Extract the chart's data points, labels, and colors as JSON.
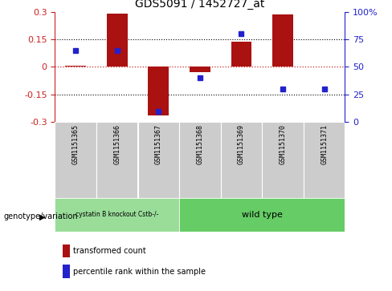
{
  "title": "GDS5091 / 1452727_at",
  "samples": [
    "GSM1151365",
    "GSM1151366",
    "GSM1151367",
    "GSM1151368",
    "GSM1151369",
    "GSM1151370",
    "GSM1151371"
  ],
  "bar_values": [
    0.005,
    0.29,
    -0.265,
    -0.03,
    0.135,
    0.285,
    0.0
  ],
  "percentile_values": [
    65,
    65,
    10,
    40,
    80,
    30,
    30
  ],
  "ylim_left": [
    -0.3,
    0.3
  ],
  "ylim_right": [
    0,
    100
  ],
  "yticks_left": [
    -0.3,
    -0.15,
    0.0,
    0.15,
    0.3
  ],
  "yticks_right": [
    0,
    25,
    50,
    75,
    100
  ],
  "bar_color": "#aa1111",
  "dot_color": "#2222cc",
  "zero_line_color": "#cc2222",
  "grid_color": "#000000",
  "group1_label": "cystatin B knockout Cstb-/-",
  "group2_label": "wild type",
  "group1_indices": [
    0,
    1,
    2
  ],
  "group2_indices": [
    3,
    4,
    5,
    6
  ],
  "group1_color": "#99dd99",
  "group2_color": "#66cc66",
  "genotype_label": "genotype/variation",
  "legend_bar_label": "transformed count",
  "legend_dot_label": "percentile rank within the sample",
  "left_axis_color": "#cc2222",
  "right_axis_color": "#2222cc",
  "label_box_color": "#cccccc",
  "bar_width": 0.5
}
